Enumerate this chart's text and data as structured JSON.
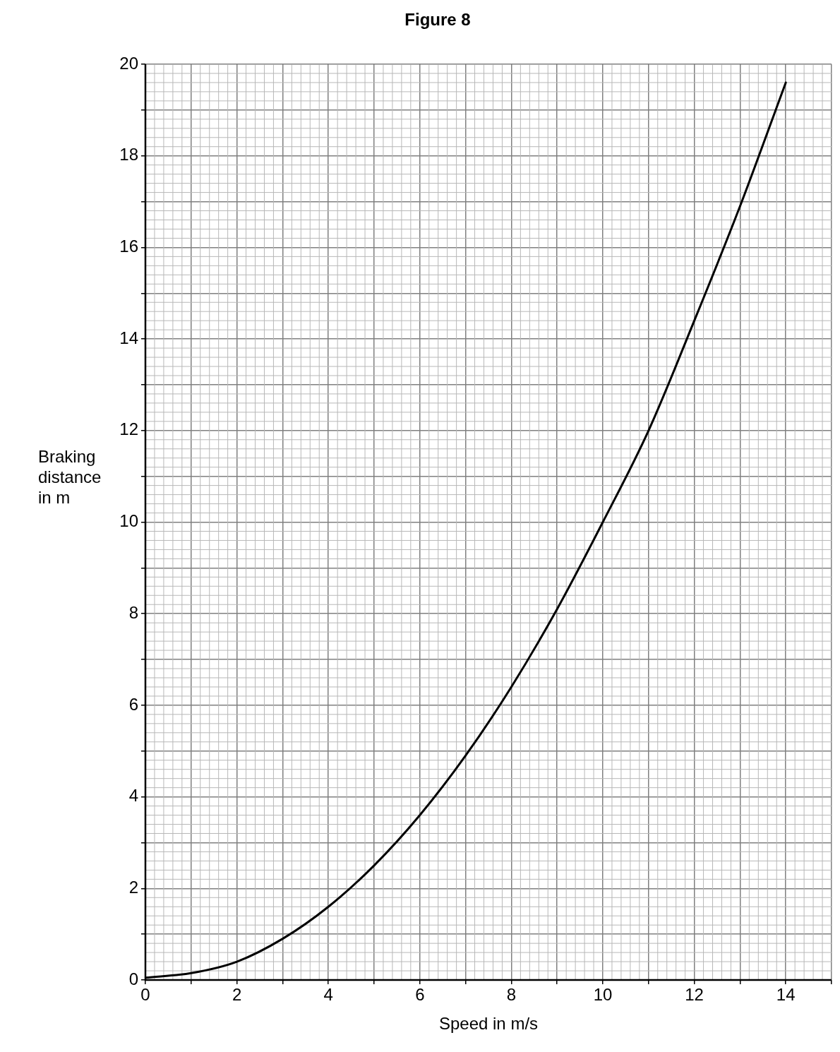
{
  "chart_data": {
    "type": "line",
    "title": "Figure 8",
    "xlabel": "Speed in m/s",
    "ylabel": "Braking distance in m",
    "x": [
      0,
      1,
      2,
      3,
      4,
      5,
      6,
      7,
      8,
      9,
      10,
      11,
      12,
      13,
      14
    ],
    "series": [
      {
        "color": "#000000",
        "values": [
          0.05,
          0.15,
          0.4,
          0.9,
          1.6,
          2.5,
          3.6,
          4.9,
          6.4,
          8.1,
          10,
          12,
          14.4,
          16.9,
          19.6
        ]
      }
    ],
    "xlim": [
      0,
      15
    ],
    "xticks": [
      0,
      {
        "value": 1,
        "label": null
      },
      2,
      {
        "value": 3,
        "label": null
      },
      4,
      {
        "value": 5,
        "label": null
      },
      6,
      {
        "value": 7,
        "label": null
      },
      8,
      {
        "value": 9,
        "label": null
      },
      10,
      {
        "value": 11,
        "label": null
      },
      12,
      {
        "value": 13,
        "label": null
      },
      14,
      {
        "value": 15,
        "label": null
      }
    ],
    "ylim": [
      0,
      20
    ],
    "yticks": [
      0,
      {
        "value": 1,
        "label": null
      },
      2,
      {
        "value": 3,
        "label": null
      },
      4,
      {
        "value": 5,
        "label": null
      },
      6,
      {
        "value": 7,
        "label": null
      },
      8,
      {
        "value": 9,
        "label": null
      },
      10,
      {
        "value": 11,
        "label": null
      },
      12,
      {
        "value": 13,
        "label": null
      },
      14,
      {
        "value": 15,
        "label": null
      },
      16,
      {
        "value": 17,
        "label": null
      },
      18,
      {
        "value": 19,
        "label": null
      },
      20
    ],
    "grid": true,
    "marker": "none",
    "line_style": "solid",
    "legend": false
  }
}
